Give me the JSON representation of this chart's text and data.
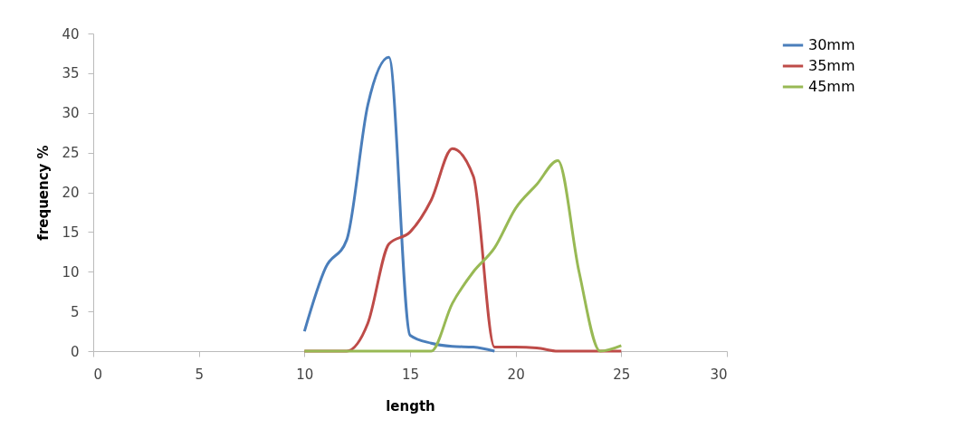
{
  "chart_data": {
    "type": "line",
    "xlabel": "length",
    "ylabel": "frequency %",
    "x": [
      10,
      11,
      12,
      13,
      14,
      15,
      16,
      17,
      18,
      19,
      20,
      21,
      22,
      23,
      24,
      25
    ],
    "series": [
      {
        "name": "30mm",
        "color": "#4a7ebb",
        "x": [
          10,
          11,
          12,
          13,
          14,
          15,
          16,
          17,
          18,
          19
        ],
        "values": [
          2.5,
          10.5,
          14,
          31,
          37,
          2,
          1,
          0.6,
          0.5,
          0
        ]
      },
      {
        "name": "35mm",
        "color": "#be4b48",
        "values": [
          0,
          0,
          0,
          3.5,
          13.5,
          15,
          19,
          25.5,
          22,
          0.5,
          0.5,
          0.4,
          0,
          0,
          0,
          0
        ]
      },
      {
        "name": "45mm",
        "color": "#98b954",
        "values": [
          0,
          0,
          0,
          0,
          0,
          0,
          0,
          6,
          10,
          13,
          18,
          21,
          24,
          10,
          0,
          0.7
        ]
      }
    ],
    "xlim": [
      0,
      30
    ],
    "xticks": [
      0,
      5,
      10,
      15,
      20,
      25,
      30
    ],
    "ylim": [
      0,
      40
    ],
    "yticks": [
      0,
      5,
      10,
      15,
      20,
      25,
      30,
      35,
      40
    ],
    "grid": false,
    "legend": "right",
    "marker": "none",
    "line_style": "solid"
  }
}
